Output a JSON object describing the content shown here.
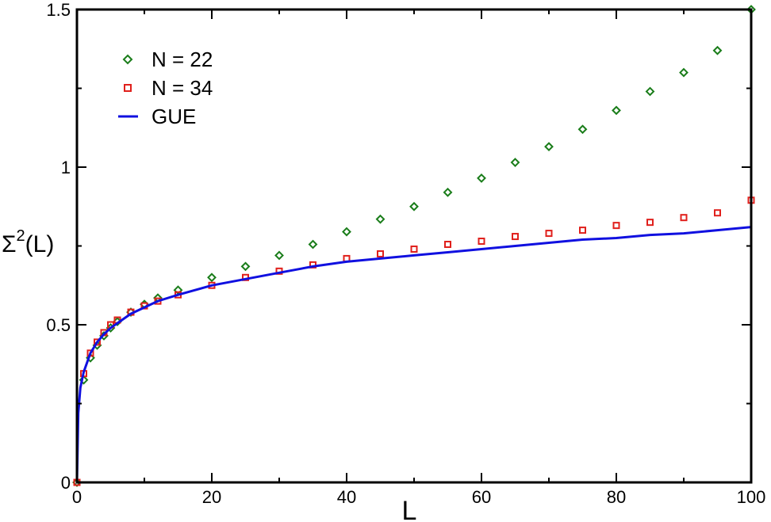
{
  "chart_data": {
    "type": "scatter",
    "xlabel": "L",
    "ylabel": "Σ²(L)",
    "ylabel_base": "Σ",
    "ylabel_sup": "2",
    "ylabel_rest": "(L)",
    "xlim": [
      0,
      100
    ],
    "ylim": [
      0,
      1.5
    ],
    "xticks": [
      0,
      20,
      40,
      60,
      80,
      100
    ],
    "xtick_labels": [
      "0",
      "20",
      "40",
      "60",
      "80",
      "100"
    ],
    "yticks": [
      0,
      0.5,
      1,
      1.5
    ],
    "ytick_labels": [
      "0",
      "0.5",
      "1",
      "1.5"
    ],
    "grid": false,
    "legend_position": "top-left",
    "series": [
      {
        "name": "N = 22",
        "marker": "diamond",
        "color": "#1a7d1a",
        "x": [
          0,
          1,
          2,
          3,
          4,
          5,
          6,
          8,
          10,
          12,
          15,
          20,
          25,
          30,
          35,
          40,
          45,
          50,
          55,
          60,
          65,
          70,
          75,
          80,
          85,
          90,
          95,
          100
        ],
        "y": [
          0,
          0.325,
          0.395,
          0.435,
          0.465,
          0.49,
          0.51,
          0.54,
          0.565,
          0.585,
          0.61,
          0.65,
          0.685,
          0.72,
          0.755,
          0.795,
          0.835,
          0.875,
          0.92,
          0.965,
          1.015,
          1.065,
          1.12,
          1.18,
          1.24,
          1.3,
          1.37,
          1.5
        ]
      },
      {
        "name": "N = 34",
        "marker": "square",
        "color": "#e0201c",
        "x": [
          0,
          1,
          2,
          3,
          4,
          5,
          6,
          8,
          10,
          12,
          15,
          20,
          25,
          30,
          35,
          40,
          45,
          50,
          55,
          60,
          65,
          70,
          75,
          80,
          85,
          90,
          95,
          100
        ],
        "y": [
          0,
          0.345,
          0.41,
          0.445,
          0.475,
          0.5,
          0.515,
          0.54,
          0.56,
          0.575,
          0.595,
          0.625,
          0.65,
          0.67,
          0.69,
          0.71,
          0.725,
          0.74,
          0.755,
          0.765,
          0.78,
          0.79,
          0.8,
          0.815,
          0.825,
          0.84,
          0.855,
          0.895
        ]
      },
      {
        "name": "GUE",
        "marker": "line",
        "color": "#1010e0",
        "x": [
          0,
          0.2,
          0.5,
          1,
          2,
          3,
          4,
          5,
          6,
          8,
          10,
          12,
          15,
          20,
          25,
          30,
          35,
          40,
          45,
          50,
          55,
          60,
          65,
          70,
          75,
          80,
          85,
          90,
          95,
          100
        ],
        "y": [
          0,
          0.22,
          0.3,
          0.35,
          0.41,
          0.445,
          0.47,
          0.49,
          0.505,
          0.535,
          0.555,
          0.575,
          0.595,
          0.625,
          0.645,
          0.665,
          0.685,
          0.7,
          0.71,
          0.72,
          0.73,
          0.74,
          0.75,
          0.76,
          0.77,
          0.775,
          0.785,
          0.79,
          0.8,
          0.81
        ]
      }
    ]
  }
}
